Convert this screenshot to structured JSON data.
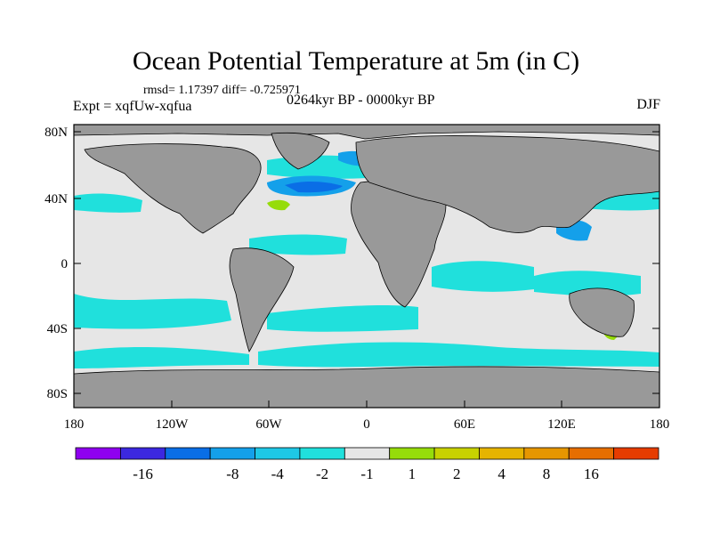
{
  "title": "Ocean Potential Temperature at 5m (in C)",
  "stats": "rmsd= 1.17397  diff= -0.725971",
  "experiment": "Expt = xqfUw-xqfua",
  "period": "0264kyr BP - 0000kyr BP",
  "season": "DJF",
  "map": {
    "lat_ticks": [
      "80N",
      "40N",
      "0",
      "40S",
      "80S"
    ],
    "lon_ticks": [
      "180",
      "120W",
      "60W",
      "0",
      "60E",
      "120E",
      "180"
    ]
  },
  "colorbar": {
    "colors": [
      "#8f00f0",
      "#3c28e0",
      "#0a6ee6",
      "#14a0ea",
      "#1ec8e6",
      "#20e0dc",
      "#e6e6e6",
      "#96dc0a",
      "#c8d200",
      "#e6b400",
      "#e69600",
      "#e66e00",
      "#e63c00"
    ],
    "labels": [
      "-16",
      "-8",
      "-4",
      "-2",
      "-1",
      "1",
      "2",
      "4",
      "8",
      "16"
    ]
  }
}
